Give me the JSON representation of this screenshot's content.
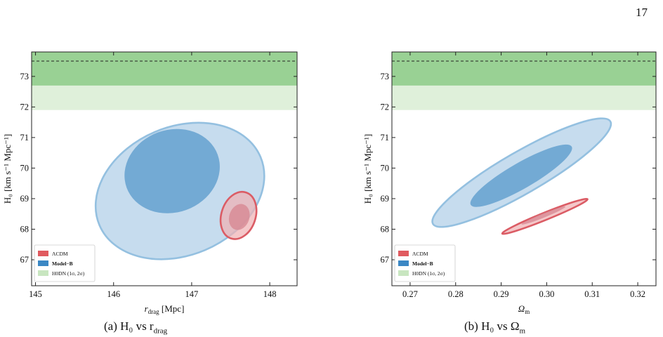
{
  "page": {
    "number": "17"
  },
  "captions": [
    {
      "label": "(a)",
      "math": "H₀ vs r_drag",
      "display": "(a) H₀ vs r",
      "sub": "drag"
    },
    {
      "label": "(b)",
      "math": "H₀ vs Ω_m",
      "display": "(b) H₀ vs Ω",
      "sub": "m"
    }
  ],
  "legend_entries": [
    {
      "label": "ΛCDM",
      "bold": false,
      "color": "#e05a5f"
    },
    {
      "label": "Model−B",
      "bold": true,
      "color": "#3b87c4"
    },
    {
      "label": "H0DN (1σ, 2σ)",
      "bold": false,
      "color": "#c8e6c0"
    }
  ],
  "colors": {
    "h0dn_1sigma": "#99d194",
    "h0dn_2sigma": "#dff0da",
    "modelb_inner": "#6fa6d2",
    "modelb_outer": "#c6dcee",
    "modelb_edge": "#94c0e0",
    "lcdm_inner": "#d78590",
    "lcdm_outer": "#f0b1b4",
    "lcdm_edge": "#db5c65"
  },
  "chart_data": [
    {
      "type": "contour",
      "id": "panel-a",
      "xlabel_main": "r",
      "xlabel_sub": "drag",
      "xlabel_unit": " [Mpc]",
      "ylabel": "H₀ [km s⁻¹ Mpc⁻¹]",
      "xlim": [
        144.95,
        148.35
      ],
      "ylim": [
        66.15,
        73.8
      ],
      "xticks": [
        145,
        146,
        147,
        148
      ],
      "yticks": [
        67,
        68,
        69,
        70,
        71,
        72,
        73
      ],
      "h0dn": {
        "mean": 73.5,
        "sigma1": [
          72.7,
          73.8
        ],
        "sigma2": [
          71.9,
          72.7
        ]
      },
      "contours": [
        {
          "series": "Model-B",
          "level": "2sigma",
          "cx": 146.85,
          "cy": 69.25,
          "rx": 1.12,
          "ry": 2.1,
          "rot": -23
        },
        {
          "series": "Model-B",
          "level": "1sigma",
          "cx": 146.75,
          "cy": 69.9,
          "rx": 0.62,
          "ry": 1.35,
          "rot": -20
        },
        {
          "series": "ΛCDM",
          "level": "2sigma",
          "cx": 147.6,
          "cy": 68.45,
          "rx": 0.31,
          "ry": 0.56,
          "rot": -72
        },
        {
          "series": "ΛCDM",
          "level": "1sigma",
          "cx": 147.61,
          "cy": 68.4,
          "rx": 0.17,
          "ry": 0.33,
          "rot": -72
        }
      ]
    },
    {
      "type": "contour",
      "id": "panel-b",
      "xlabel_main": "Ω",
      "xlabel_sub": "m",
      "xlabel_unit": "",
      "ylabel": "H₀ [km s⁻¹ Mpc⁻¹]",
      "xlim": [
        0.266,
        0.324
      ],
      "ylim": [
        66.15,
        73.8
      ],
      "xticks": [
        0.27,
        0.28,
        0.29,
        0.3,
        0.31,
        0.32
      ],
      "xticklabels": [
        "0.27",
        "0.28",
        "0.29",
        "0.30",
        "0.31",
        "0.32"
      ],
      "yticks": [
        67,
        68,
        69,
        70,
        71,
        72,
        73
      ],
      "h0dn": {
        "mean": 73.5,
        "sigma1": [
          72.7,
          73.8
        ],
        "sigma2": [
          71.9,
          72.7
        ]
      },
      "contours": [
        {
          "series": "Model-B",
          "level": "2sigma",
          "cx": 0.2945,
          "cy": 69.85,
          "rx": 0.0225,
          "ry": 0.68,
          "rot": -30
        },
        {
          "series": "Model-B",
          "level": "1sigma",
          "cx": 0.2944,
          "cy": 69.75,
          "rx": 0.0128,
          "ry": 0.42,
          "rot": -30
        },
        {
          "series": "ΛCDM",
          "level": "2sigma",
          "cx": 0.2996,
          "cy": 68.42,
          "rx": 0.0101,
          "ry": 0.12,
          "rot": -22
        },
        {
          "series": "ΛCDM",
          "level": "1sigma",
          "cx": 0.2993,
          "cy": 68.45,
          "rx": 0.0052,
          "ry": 0.07,
          "rot": -22
        }
      ]
    }
  ]
}
